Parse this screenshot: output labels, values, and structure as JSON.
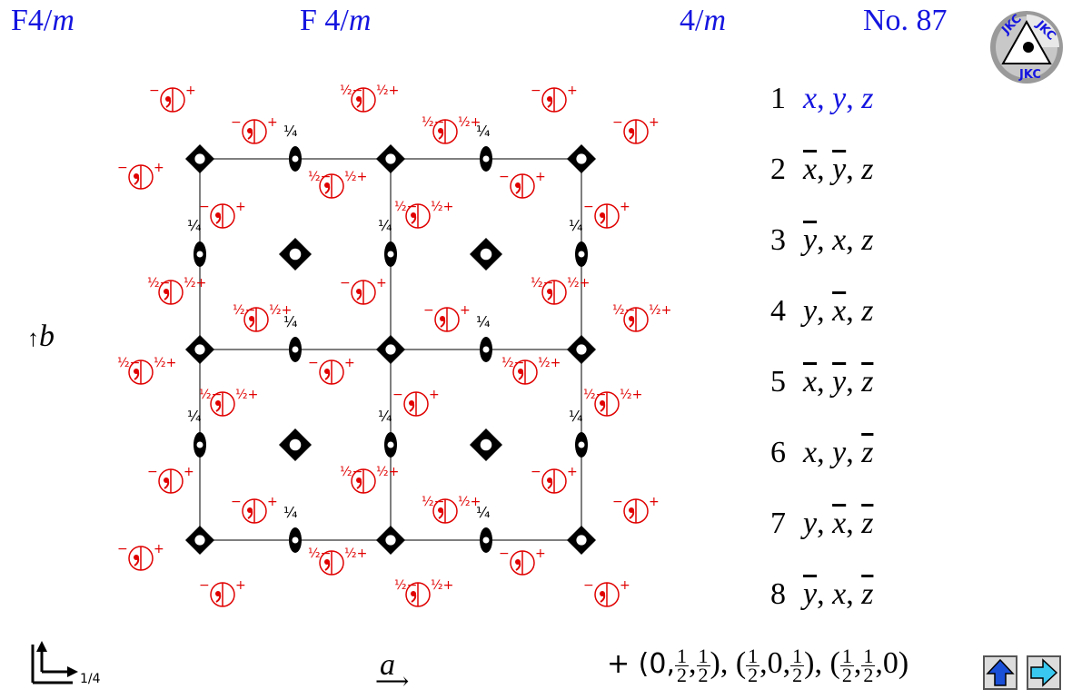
{
  "header": {
    "short_symbol_main": "F4/",
    "short_symbol_m": "m",
    "full_symbol_main": "F 4/",
    "full_symbol_m": "m",
    "point_group_main": "4/",
    "point_group_m": "m",
    "number": "No. 87"
  },
  "logo": {
    "text": "JKC"
  },
  "operations": [
    {
      "num": "1",
      "parts": [
        [
          "x",
          false
        ],
        [
          ", ",
          false
        ],
        [
          "y",
          false
        ],
        [
          ", ",
          false
        ],
        [
          "z",
          false
        ]
      ]
    },
    {
      "num": "2",
      "parts": [
        [
          "x",
          true
        ],
        [
          ", ",
          false
        ],
        [
          "y",
          true
        ],
        [
          ", ",
          false
        ],
        [
          "z",
          false
        ]
      ]
    },
    {
      "num": "3",
      "parts": [
        [
          "y",
          true
        ],
        [
          ", ",
          false
        ],
        [
          "x",
          false
        ],
        [
          ", ",
          false
        ],
        [
          "z",
          false
        ]
      ]
    },
    {
      "num": "4",
      "parts": [
        [
          "y",
          false
        ],
        [
          ", ",
          false
        ],
        [
          "x",
          true
        ],
        [
          ", ",
          false
        ],
        [
          "z",
          false
        ]
      ]
    },
    {
      "num": "5",
      "parts": [
        [
          "x",
          true
        ],
        [
          ", ",
          false
        ],
        [
          "y",
          true
        ],
        [
          ", ",
          false
        ],
        [
          "z",
          true
        ]
      ]
    },
    {
      "num": "6",
      "parts": [
        [
          "x",
          false
        ],
        [
          ", ",
          false
        ],
        [
          "y",
          false
        ],
        [
          ", ",
          false
        ],
        [
          "z",
          true
        ]
      ]
    },
    {
      "num": "7",
      "parts": [
        [
          "y",
          false
        ],
        [
          ", ",
          false
        ],
        [
          "x",
          true
        ],
        [
          ", ",
          false
        ],
        [
          "z",
          true
        ]
      ]
    },
    {
      "num": "8",
      "parts": [
        [
          "y",
          true
        ],
        [
          ", ",
          false
        ],
        [
          "x",
          false
        ],
        [
          ", ",
          false
        ],
        [
          "z",
          true
        ]
      ]
    }
  ],
  "axes": {
    "a": "a",
    "b": "b",
    "corner_label": "1/4"
  },
  "centering": {
    "prefix": "+ (0,",
    "mid1": ",",
    "sep1": "), (",
    "mid2": ",0,",
    "sep2": "), (",
    "mid3": ",",
    "suffix": ",0)",
    "half_num": "1",
    "half_den": "2"
  },
  "labels": {
    "plus": "+",
    "minus": "−",
    "half": "½",
    "quarter": "¼"
  },
  "colors": {
    "title": "#1515e0",
    "positions": "#e00000",
    "symbols": "#000000",
    "button_up": "#1a4fd8",
    "button_next": "#39c9f0"
  },
  "buttons": {
    "up_icon": "arrow-up-icon",
    "next_icon": "arrow-right-icon"
  }
}
